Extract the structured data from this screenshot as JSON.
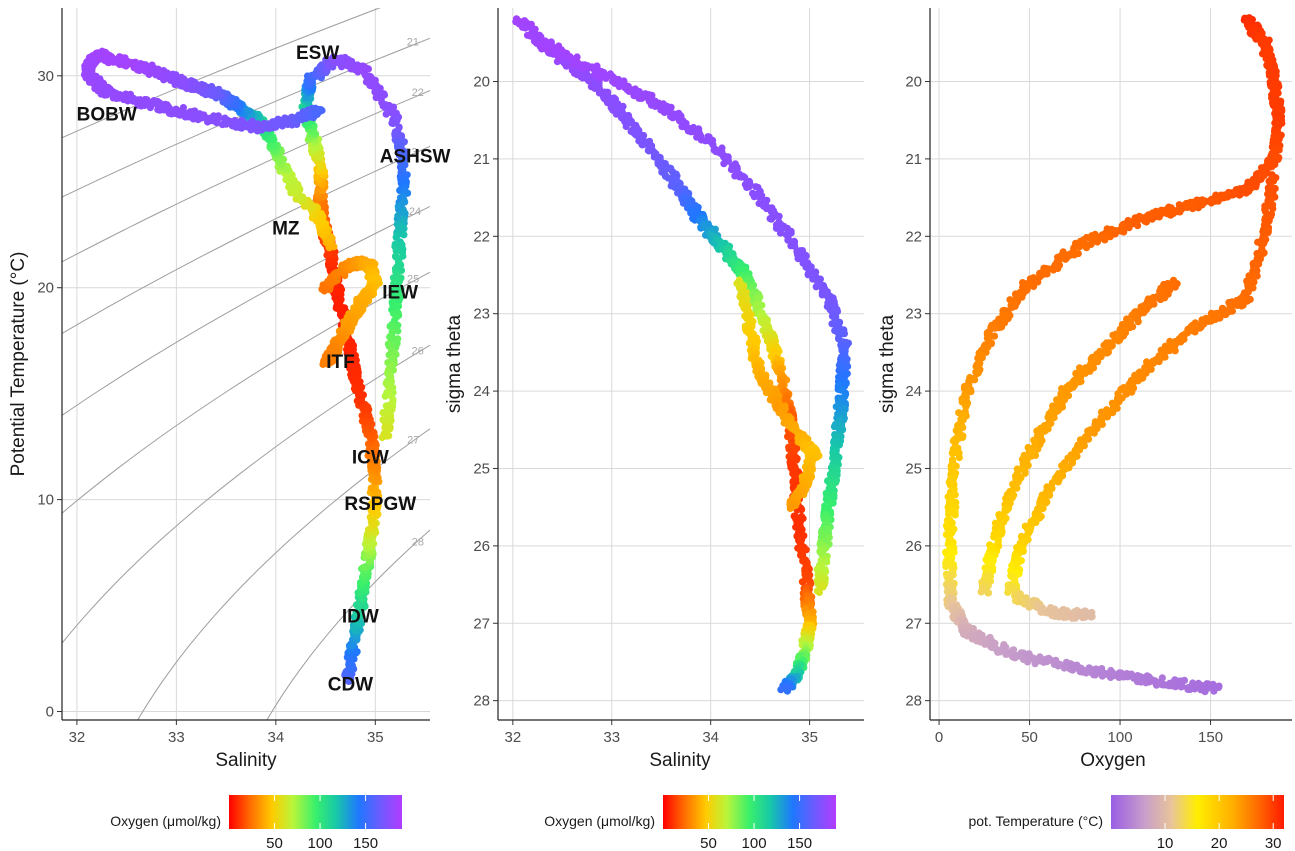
{
  "chart_data": [
    {
      "type": "scatter",
      "title": "",
      "xlabel": "Salinity",
      "ylabel": "Potential Temperature (°C)",
      "xlim": [
        31.85,
        35.55
      ],
      "ylim": [
        -0.4,
        33.2
      ],
      "xticks": [
        "32",
        "33",
        "34",
        "35"
      ],
      "yticks": [
        "0",
        "10",
        "20",
        "30"
      ],
      "grid": true,
      "color_by": "oxygen",
      "isopycnals": [
        {
          "label": "20",
          "sigma": 20
        },
        {
          "label": "21",
          "sigma": 21
        },
        {
          "label": "22",
          "sigma": 22
        },
        {
          "label": "23",
          "sigma": 23
        },
        {
          "label": "24",
          "sigma": 24
        },
        {
          "label": "25",
          "sigma": 25
        },
        {
          "label": "26",
          "sigma": 26
        },
        {
          "label": "27",
          "sigma": 27
        },
        {
          "label": "28",
          "sigma": 28
        }
      ],
      "water_masses": [
        {
          "label": "ESW",
          "salinity": 34.42,
          "temperature": 30.8
        },
        {
          "label": "BOBW",
          "salinity": 32.3,
          "temperature": 27.9
        },
        {
          "label": "ASHSW",
          "salinity": 35.4,
          "temperature": 25.9
        },
        {
          "label": "MZ",
          "salinity": 34.1,
          "temperature": 22.5
        },
        {
          "label": "IEW",
          "salinity": 35.25,
          "temperature": 19.5
        },
        {
          "label": "ITF",
          "salinity": 34.65,
          "temperature": 16.2
        },
        {
          "label": "ICW",
          "salinity": 34.95,
          "temperature": 11.7
        },
        {
          "label": "RSPGW",
          "salinity": 35.05,
          "temperature": 9.5
        },
        {
          "label": "IDW",
          "salinity": 34.85,
          "temperature": 4.2
        },
        {
          "label": "CDW",
          "salinity": 34.75,
          "temperature": 1.0
        }
      ],
      "profiles": [
        {
          "name": "core",
          "points": [
            [
              34.72,
              1.5,
              160
            ],
            [
              34.78,
              3.0,
              140
            ],
            [
              34.85,
              5.0,
              110
            ],
            [
              34.92,
              7.0,
              85
            ],
            [
              34.98,
              9.0,
              55
            ],
            [
              35.0,
              11.0,
              35
            ],
            [
              34.95,
              13.0,
              20
            ],
            [
              34.85,
              15.0,
              10
            ],
            [
              34.75,
              17.0,
              8
            ],
            [
              34.65,
              19.0,
              6
            ],
            [
              34.58,
              21.0,
              8
            ],
            [
              34.5,
              22.5,
              15
            ],
            [
              34.45,
              24.0,
              25
            ],
            [
              34.45,
              25.5,
              45
            ],
            [
              34.38,
              27.0,
              75
            ],
            [
              34.3,
              28.5,
              110
            ],
            [
              34.35,
              29.8,
              150
            ],
            [
              34.6,
              30.8,
              175
            ],
            [
              34.9,
              30.2,
              180
            ],
            [
              35.2,
              28.0,
              175
            ],
            [
              35.3,
              25.5,
              150
            ],
            [
              35.25,
              22.5,
              120
            ],
            [
              35.2,
              19.0,
              95
            ],
            [
              35.15,
              15.5,
              75
            ],
            [
              35.1,
              13.0,
              60
            ]
          ]
        },
        {
          "name": "inner",
          "points": [
            [
              34.55,
              22.0,
              40
            ],
            [
              34.4,
              23.5,
              50
            ],
            [
              34.2,
              24.5,
              65
            ],
            [
              34.1,
              25.5,
              70
            ],
            [
              34.0,
              26.5,
              85
            ],
            [
              33.9,
              27.4,
              100
            ],
            [
              33.8,
              28.0,
              120
            ],
            [
              33.6,
              28.6,
              145
            ],
            [
              33.4,
              29.2,
              165
            ],
            [
              33.1,
              29.6,
              175
            ],
            [
              32.8,
              30.2,
              180
            ],
            [
              32.5,
              30.6,
              185
            ],
            [
              32.2,
              31.0,
              185
            ],
            [
              32.1,
              30.2,
              182
            ],
            [
              32.3,
              29.2,
              180
            ],
            [
              32.8,
              28.6,
              178
            ],
            [
              33.3,
              28.0,
              176
            ],
            [
              33.8,
              27.6,
              172
            ],
            [
              34.2,
              27.9,
              165
            ],
            [
              34.45,
              28.4,
              155
            ]
          ]
        },
        {
          "name": "side",
          "points": [
            [
              34.5,
              20.0,
              25
            ],
            [
              34.7,
              21.0,
              30
            ],
            [
              34.85,
              21.2,
              35
            ],
            [
              34.95,
              21.0,
              40
            ],
            [
              35.0,
              20.2,
              45
            ],
            [
              34.9,
              19.6,
              40
            ],
            [
              34.8,
              18.8,
              38
            ],
            [
              34.7,
              18.0,
              35
            ],
            [
              34.6,
              17.2,
              30
            ],
            [
              34.5,
              16.5,
              28
            ]
          ]
        }
      ],
      "colorbar": {
        "title": "Oxygen (μmol/kg)",
        "ticks": [
          "50",
          "100",
          "150"
        ],
        "range": [
          0,
          190
        ],
        "scale": "rainbow"
      }
    },
    {
      "type": "scatter",
      "title": "",
      "xlabel": "Salinity",
      "ylabel": "sigma theta",
      "xlim": [
        31.85,
        35.55
      ],
      "ylim": [
        19.05,
        28.25
      ],
      "y_reversed": true,
      "xticks": [
        "32",
        "33",
        "34",
        "35"
      ],
      "yticks": [
        "20",
        "21",
        "22",
        "23",
        "24",
        "25",
        "26",
        "27",
        "28"
      ],
      "grid": true,
      "color_by": "oxygen",
      "profiles": [
        {
          "name": "upper",
          "points": [
            [
              32.05,
              19.2,
              185
            ],
            [
              32.4,
              19.6,
              182
            ],
            [
              32.8,
              20.0,
              178
            ],
            [
              33.1,
              20.4,
              175
            ],
            [
              33.4,
              20.9,
              170
            ],
            [
              33.7,
              21.4,
              160
            ],
            [
              33.9,
              21.8,
              140
            ],
            [
              34.1,
              22.1,
              120
            ],
            [
              34.3,
              22.4,
              100
            ],
            [
              34.45,
              22.8,
              80
            ],
            [
              34.6,
              23.3,
              60
            ],
            [
              34.7,
              23.7,
              40
            ],
            [
              34.8,
              24.3,
              20
            ],
            [
              34.85,
              25.0,
              12
            ],
            [
              34.9,
              25.8,
              10
            ],
            [
              34.97,
              26.5,
              15
            ],
            [
              35.0,
              27.0,
              40
            ],
            [
              34.95,
              27.4,
              80
            ],
            [
              34.85,
              27.7,
              120
            ],
            [
              34.75,
              27.85,
              150
            ]
          ]
        },
        {
          "name": "outer",
          "points": [
            [
              32.3,
              19.5,
              185
            ],
            [
              32.9,
              19.9,
              183
            ],
            [
              33.5,
              20.3,
              180
            ],
            [
              34.0,
              20.8,
              178
            ],
            [
              34.5,
              21.5,
              176
            ],
            [
              34.9,
              22.2,
              174
            ],
            [
              35.2,
              22.8,
              170
            ],
            [
              35.35,
              23.4,
              160
            ],
            [
              35.33,
              24.0,
              140
            ],
            [
              35.28,
              24.7,
              120
            ],
            [
              35.2,
              25.4,
              100
            ],
            [
              35.15,
              26.0,
              80
            ],
            [
              35.1,
              26.6,
              60
            ]
          ]
        },
        {
          "name": "side",
          "points": [
            [
              34.3,
              22.6,
              60
            ],
            [
              34.4,
              23.2,
              50
            ],
            [
              34.5,
              23.8,
              40
            ],
            [
              34.7,
              24.2,
              35
            ],
            [
              34.9,
              24.6,
              40
            ],
            [
              35.05,
              24.8,
              45
            ],
            [
              34.95,
              25.2,
              40
            ],
            [
              34.8,
              25.5,
              35
            ]
          ]
        }
      ],
      "colorbar": {
        "title": "Oxygen (μmol/kg)",
        "ticks": [
          "50",
          "100",
          "150"
        ],
        "range": [
          0,
          190
        ],
        "scale": "rainbow"
      }
    },
    {
      "type": "scatter",
      "title": "",
      "xlabel": "Oxygen",
      "ylabel": "sigma theta",
      "xlim": [
        -5,
        195
      ],
      "ylim": [
        19.05,
        28.25
      ],
      "y_reversed": true,
      "xticks": [
        "0",
        "50",
        "100",
        "150"
      ],
      "yticks": [
        "20",
        "21",
        "22",
        "23",
        "24",
        "25",
        "26",
        "27",
        "28"
      ],
      "grid": true,
      "color_by": "potential temperature",
      "profiles": [
        {
          "name": "surface-to-deep",
          "points": [
            [
              170,
              19.2,
              31
            ],
            [
              180,
              19.5,
              30
            ],
            [
              185,
              20.0,
              30
            ],
            [
              188,
              20.5,
              30
            ],
            [
              185,
              21.0,
              29
            ],
            [
              170,
              21.4,
              29
            ],
            [
              140,
              21.6,
              28
            ],
            [
              110,
              21.8,
              28
            ],
            [
              80,
              22.1,
              27
            ],
            [
              50,
              22.6,
              27
            ],
            [
              30,
              23.2,
              26
            ],
            [
              15,
              24.0,
              24
            ],
            [
              8,
              25.0,
              20
            ],
            [
              6,
              26.0,
              17
            ],
            [
              6,
              26.7,
              12
            ],
            [
              15,
              27.1,
              8
            ],
            [
              40,
              27.4,
              6
            ],
            [
              80,
              27.6,
              4
            ],
            [
              120,
              27.75,
              2.5
            ],
            [
              155,
              27.85,
              1.5
            ]
          ]
        },
        {
          "name": "return",
          "points": [
            [
              185,
              21.2,
              29
            ],
            [
              180,
              22.0,
              28
            ],
            [
              170,
              22.8,
              27
            ],
            [
              140,
              23.2,
              26
            ],
            [
              110,
              23.8,
              25
            ],
            [
              85,
              24.5,
              24
            ],
            [
              60,
              25.3,
              22
            ],
            [
              45,
              26.0,
              19
            ],
            [
              40,
              26.6,
              14
            ],
            [
              60,
              26.85,
              11
            ],
            [
              85,
              26.9,
              10
            ]
          ]
        },
        {
          "name": "middle",
          "points": [
            [
              130,
              22.6,
              27
            ],
            [
              110,
              23.0,
              26
            ],
            [
              90,
              23.5,
              25
            ],
            [
              70,
              24.0,
              24
            ],
            [
              55,
              24.6,
              23
            ],
            [
              40,
              25.3,
              21
            ],
            [
              30,
              26.0,
              18
            ],
            [
              25,
              26.6,
              13
            ]
          ]
        }
      ],
      "colorbar": {
        "title": "pot. Temperature (°C)",
        "ticks": [
          "10",
          "20",
          "30"
        ],
        "range": [
          0,
          32
        ],
        "scale": "purple-yellow-red"
      }
    }
  ]
}
